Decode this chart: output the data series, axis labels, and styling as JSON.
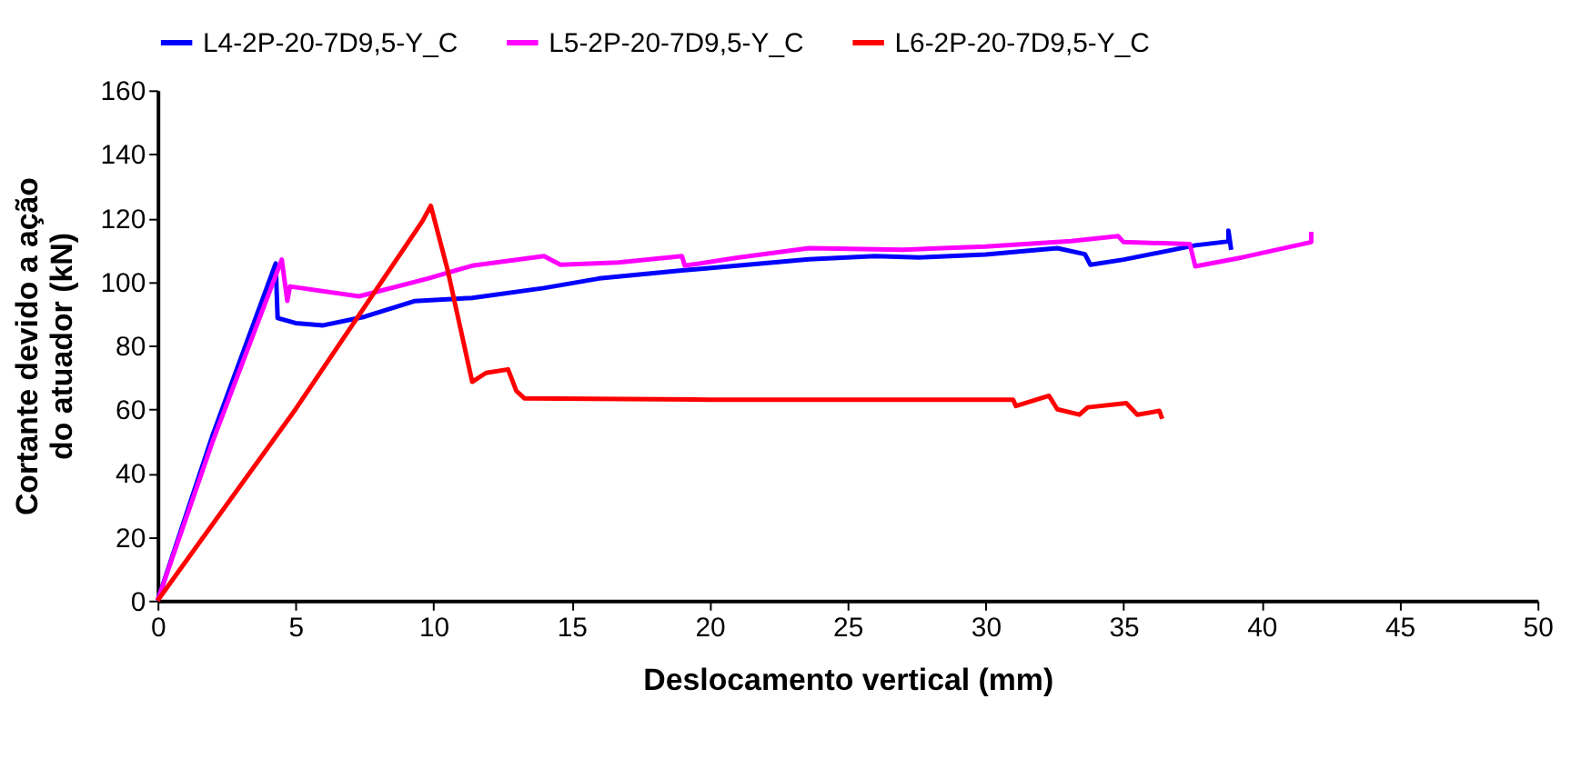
{
  "chart_data": {
    "type": "line",
    "xlabel": "Deslocamento vertical (mm)",
    "ylabel": "Cortante devido a ação\ndo atuador (kN)",
    "xlim": [
      0,
      50
    ],
    "xticks": [
      0,
      5,
      10,
      15,
      20,
      25,
      30,
      35,
      40,
      45,
      50
    ],
    "ylim": [
      0,
      160
    ],
    "yticks": [
      0,
      20,
      40,
      60,
      80,
      100,
      120,
      140,
      160
    ],
    "grid": false,
    "legend": "top",
    "marker": "none",
    "line_style": "solid",
    "series": [
      {
        "name": "L4-2P-20-7D9,5-Y_C",
        "color": "#0000ff",
        "x": [
          0,
          2,
          4.28,
          4.35,
          5,
          6,
          7.5,
          9.3,
          11.4,
          14,
          16,
          19,
          21,
          23.6,
          26,
          27.6,
          30,
          32.6,
          33.6,
          33.8,
          35,
          37.6,
          38.8,
          38.8,
          38.9
        ],
        "values": [
          0,
          52,
          105.7,
          88.6,
          87,
          86.3,
          89,
          93.9,
          94.9,
          98,
          101,
          103.5,
          105,
          107,
          108,
          107.6,
          108.5,
          110.5,
          108.6,
          105.3,
          106.9,
          111.4,
          112.6,
          116,
          110
        ]
      },
      {
        "name": "L5-2P-20-7D9,5-Y_C",
        "color": "#ff00ff",
        "x": [
          0,
          2,
          4.5,
          4.7,
          4.8,
          7.3,
          9.8,
          11.4,
          14,
          14.6,
          16.7,
          19,
          19.1,
          21,
          23.6,
          27,
          30,
          33.1,
          34.8,
          35,
          37.4,
          37.6,
          39.3,
          41.8,
          41.8
        ],
        "values": [
          0,
          50,
          106.9,
          94,
          98.5,
          95.4,
          101,
          105,
          108,
          105.3,
          106,
          108,
          105,
          107.5,
          110.5,
          110,
          111,
          112.7,
          114.3,
          112.4,
          111.8,
          104.8,
          107.6,
          112.4,
          115.6
        ]
      },
      {
        "name": "L6-2P-20-7D9,5-Y_C",
        "color": "#ff0000",
        "x": [
          0,
          5,
          9.6,
          9.9,
          10.5,
          11.4,
          11.9,
          12.7,
          13,
          13.3,
          20,
          25,
          31,
          31.1,
          32.3,
          32.6,
          33.4,
          33.7,
          35.1,
          35.5,
          36.3,
          36.4
        ],
        "values": [
          0,
          60,
          119,
          123.8,
          104,
          68.6,
          71.4,
          72.5,
          65.7,
          63.4,
          63,
          63,
          63,
          61,
          64.2,
          60,
          58.3,
          60.6,
          61.9,
          58.3,
          59.5,
          57
        ]
      }
    ]
  }
}
